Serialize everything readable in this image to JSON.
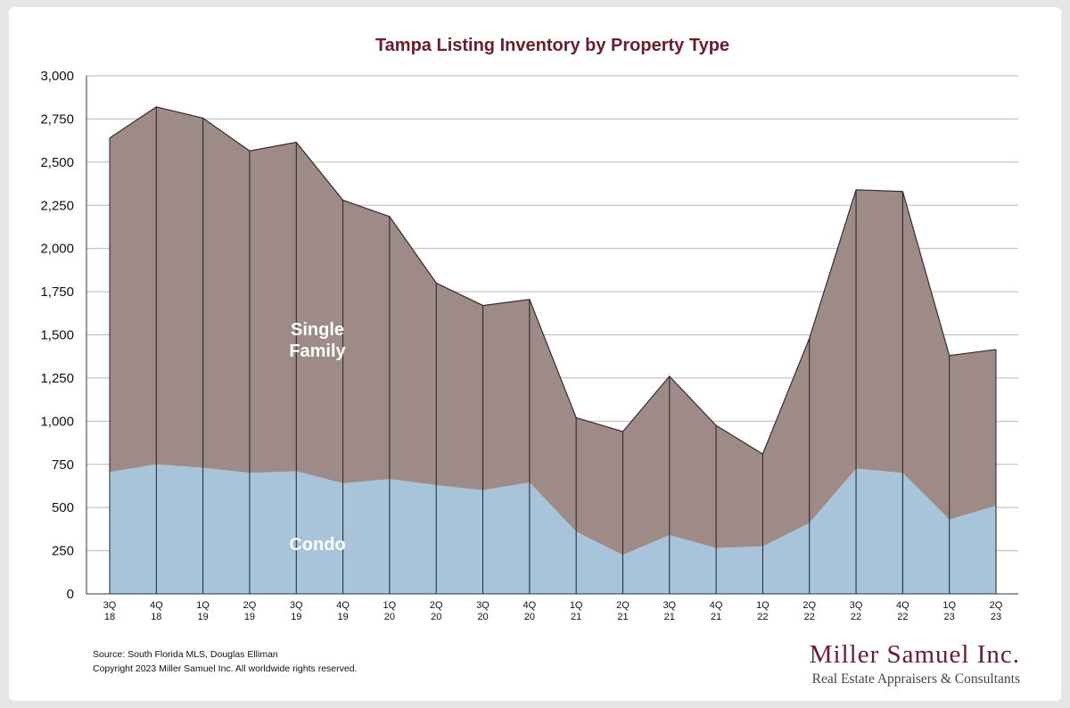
{
  "chart_data": {
    "type": "area",
    "stacked": true,
    "title": "Tampa Listing Inventory by Property Type",
    "categories": [
      [
        "3Q",
        "18"
      ],
      [
        "4Q",
        "18"
      ],
      [
        "1Q",
        "19"
      ],
      [
        "2Q",
        "19"
      ],
      [
        "3Q",
        "19"
      ],
      [
        "4Q",
        "19"
      ],
      [
        "1Q",
        "20"
      ],
      [
        "2Q",
        "20"
      ],
      [
        "3Q",
        "20"
      ],
      [
        "4Q",
        "20"
      ],
      [
        "1Q",
        "21"
      ],
      [
        "2Q",
        "21"
      ],
      [
        "3Q",
        "21"
      ],
      [
        "4Q",
        "21"
      ],
      [
        "1Q",
        "22"
      ],
      [
        "2Q",
        "22"
      ],
      [
        "3Q",
        "22"
      ],
      [
        "4Q",
        "22"
      ],
      [
        "1Q",
        "23"
      ],
      [
        "2Q",
        "23"
      ]
    ],
    "series": [
      {
        "name": "Condo",
        "values": [
          705,
          750,
          730,
          700,
          710,
          640,
          665,
          630,
          600,
          645,
          360,
          225,
          340,
          265,
          275,
          410,
          725,
          700,
          430,
          510
        ]
      },
      {
        "name": "Single Family",
        "values": [
          1935,
          2070,
          2025,
          1865,
          1905,
          1640,
          1520,
          1170,
          1070,
          1060,
          660,
          715,
          920,
          710,
          535,
          1070,
          1615,
          1630,
          950,
          905
        ]
      }
    ],
    "area_labels": [
      [
        "Single",
        "Family"
      ],
      [
        "Condo"
      ]
    ],
    "ylim": [
      0,
      3000
    ],
    "yticks": [
      0,
      250,
      500,
      750,
      1000,
      1250,
      1500,
      1750,
      2000,
      2250,
      2500,
      2750,
      3000
    ],
    "ytick_labels": [
      "0",
      "250",
      "500",
      "750",
      "1,000",
      "1,250",
      "1,500",
      "1,750",
      "2,000",
      "2,250",
      "2,500",
      "2,750",
      "3,000"
    ],
    "grid": true,
    "colors": {
      "condo": "#a8c4da",
      "single_family": "#9e8a86",
      "title": "#6b1d28",
      "grid": "#b8b8b8"
    }
  },
  "footer": {
    "source": "Source: South Florida MLS, Douglas Elliman",
    "copyright": "Copyright 2023 Miller Samuel Inc.  All worldwide rights reserved."
  },
  "brand": {
    "name": "Miller Samuel Inc.",
    "tagline": "Real Estate Appraisers & Consultants"
  }
}
